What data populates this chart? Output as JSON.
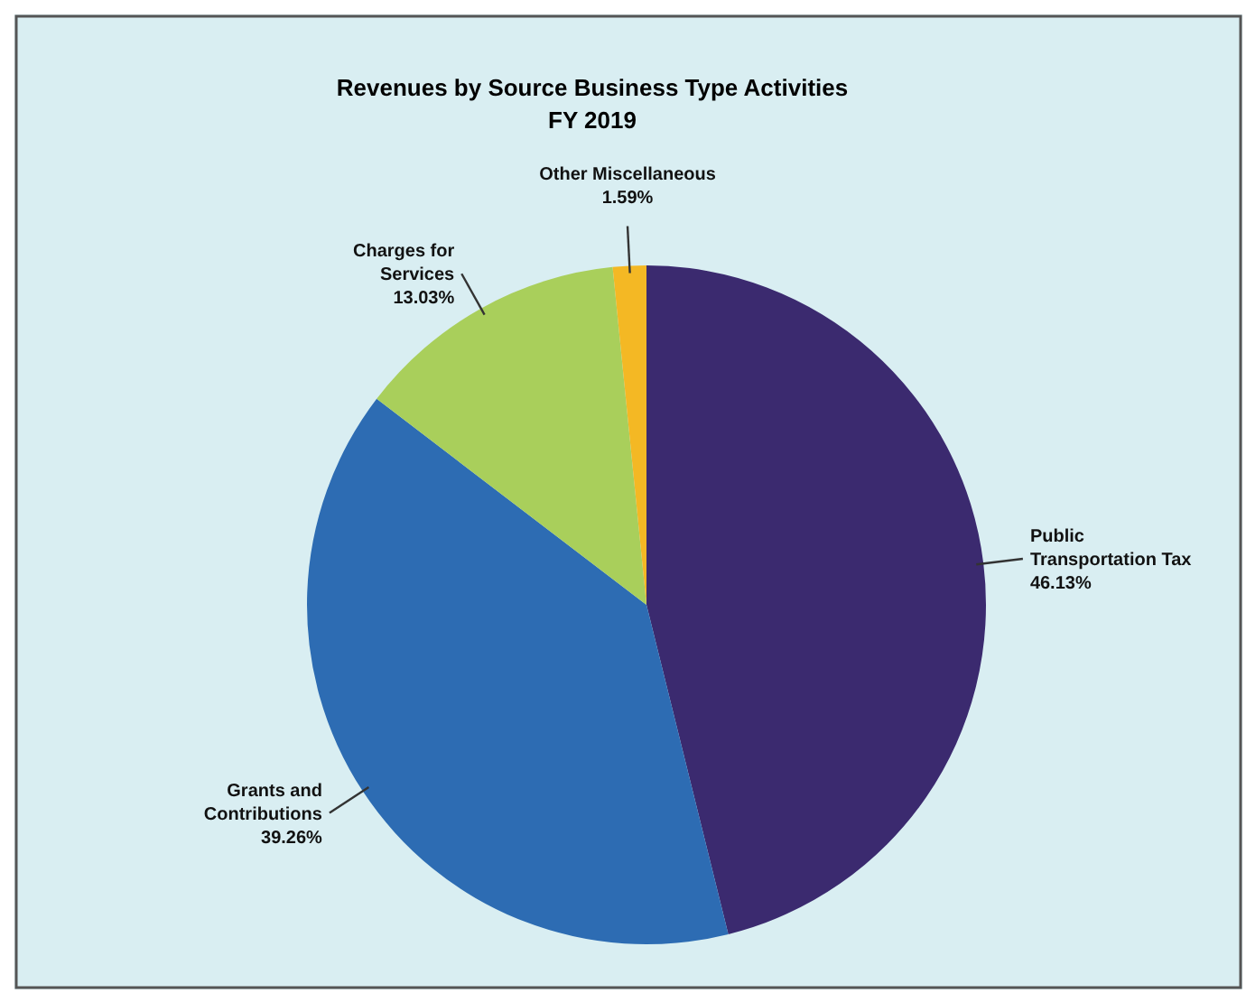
{
  "chart_data": {
    "type": "pie",
    "title": "Revenues by Source Business Type Activities",
    "subtitle": "FY 2019",
    "categories": [
      "Public Transportation Tax",
      "Grants and Contributions",
      "Charges for Services",
      "Other Miscellaneous"
    ],
    "values": [
      46.13,
      39.26,
      13.03,
      1.59
    ],
    "value_labels": [
      "46.13%",
      "39.26%",
      "13.03%",
      "1.59%"
    ],
    "colors": [
      "#3b2a6f",
      "#2d6cb3",
      "#a9cf5b",
      "#f4b824"
    ]
  }
}
